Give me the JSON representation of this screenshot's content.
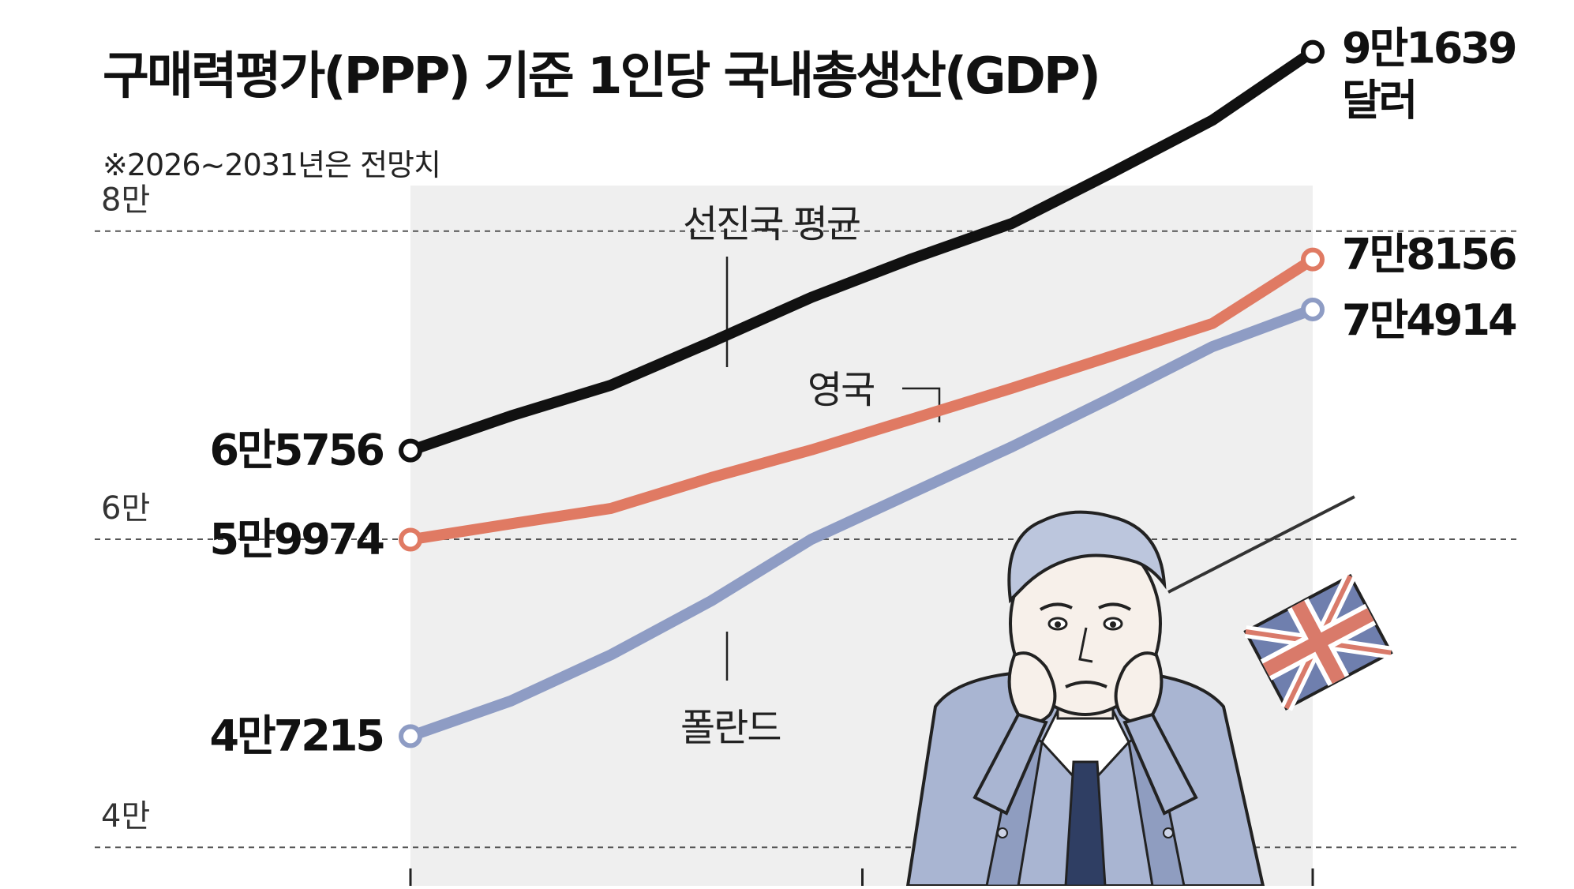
{
  "header": {
    "title": "구매력평가(PPP) 기준 1인당 국내총생산(GDP)",
    "note": "※2026~2031년은 전망치"
  },
  "chart_data": {
    "type": "line",
    "title": "구매력평가(PPP) 기준 1인당 국내총생산(GDP)",
    "subtitle": "※2026~2031년은 전망치",
    "x": [
      0,
      1,
      2,
      3,
      4,
      5,
      6,
      7,
      8,
      9
    ],
    "ylim": [
      37500,
      95000
    ],
    "yticks": [
      40000,
      60000,
      80000
    ],
    "ytick_labels": [
      "4만",
      "6만",
      "8만"
    ],
    "grid": true,
    "series": [
      {
        "name": "선진국 평균",
        "color": "#111111",
        "values": [
          65756,
          68000,
          70000,
          72800,
          75700,
          78200,
          80500,
          83800,
          87200,
          91639
        ],
        "start_label": "6만5756",
        "end_label": "9만1639",
        "end_label_unit": "달러"
      },
      {
        "name": "영국",
        "color": "#e07a63",
        "values": [
          59974,
          61000,
          62000,
          64000,
          65800,
          67800,
          69800,
          71900,
          74000,
          78156
        ],
        "start_label": "5만9974",
        "end_label": "7만8156"
      },
      {
        "name": "폴란드",
        "color": "#8e9cc4",
        "values": [
          47215,
          49500,
          52500,
          56000,
          60000,
          63000,
          66000,
          69200,
          72500,
          74914
        ],
        "start_label": "4만7215",
        "end_label": "7만4914"
      }
    ]
  }
}
